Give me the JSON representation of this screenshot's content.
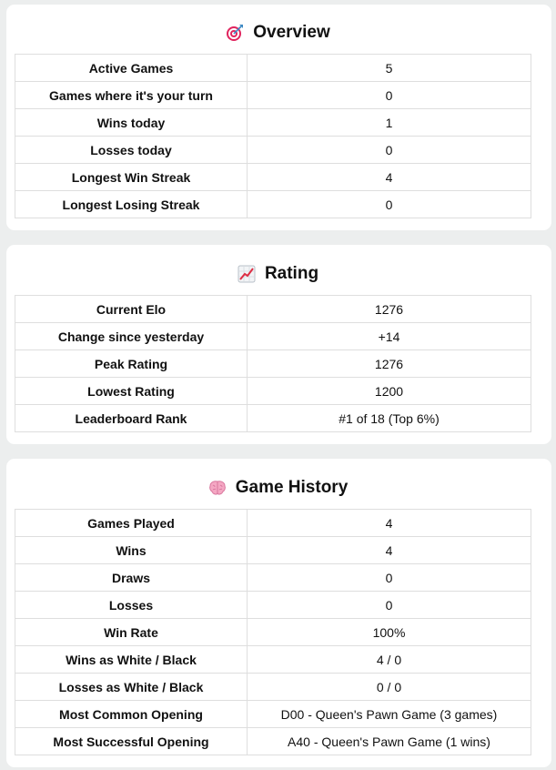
{
  "overview": {
    "title": "Overview",
    "icon": "dart-target-icon",
    "rows": [
      {
        "label": "Active Games",
        "value": "5"
      },
      {
        "label": "Games where it's your turn",
        "value": "0"
      },
      {
        "label": "Wins today",
        "value": "1"
      },
      {
        "label": "Losses today",
        "value": "0"
      },
      {
        "label": "Longest Win Streak",
        "value": "4"
      },
      {
        "label": "Longest Losing Streak",
        "value": "0"
      }
    ]
  },
  "rating": {
    "title": "Rating",
    "icon": "chart-increasing-icon",
    "rows": [
      {
        "label": "Current Elo",
        "value": "1276"
      },
      {
        "label": "Change since yesterday",
        "value": "+14"
      },
      {
        "label": "Peak Rating",
        "value": "1276"
      },
      {
        "label": "Lowest Rating",
        "value": "1200"
      },
      {
        "label": "Leaderboard Rank",
        "value": "#1 of 18 (Top 6%)"
      }
    ]
  },
  "history": {
    "title": "Game History",
    "icon": "brain-icon",
    "rows": [
      {
        "label": "Games Played",
        "value": "4"
      },
      {
        "label": "Wins",
        "value": "4"
      },
      {
        "label": "Draws",
        "value": "0"
      },
      {
        "label": "Losses",
        "value": "0"
      },
      {
        "label": "Win Rate",
        "value": "100%"
      },
      {
        "label": "Wins as White / Black",
        "value": "4 / 0"
      },
      {
        "label": "Losses as White / Black",
        "value": "0 / 0"
      },
      {
        "label": "Most Common Opening",
        "value": "D00 - Queen's Pawn Game (3 games)"
      },
      {
        "label": "Most Successful Opening",
        "value": "A40 - Queen's Pawn Game (1 wins)"
      }
    ]
  }
}
